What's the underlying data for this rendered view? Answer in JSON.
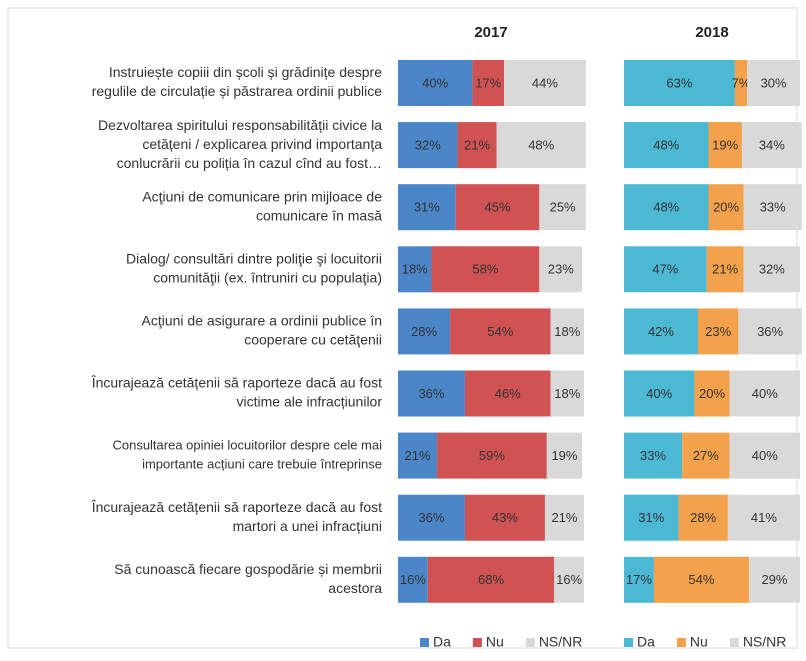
{
  "chart_data": [
    {
      "type": "bar",
      "orientation": "horizontal",
      "stacked": true,
      "title": "2017",
      "categories": [
        [
          "Instruiește copiii din școli și grădinițe despre",
          "regulile de circulație și păstrarea ordinii publice"
        ],
        [
          "Dezvoltarea spiritului responsabilității civice la",
          "cetățeni / explicarea privind importanța",
          "conlucrării cu poliția în cazul cînd au fost…"
        ],
        [
          "Acţiuni de comunicare prin mijloace de",
          "comunicare în masă"
        ],
        [
          "Dialog/ consultări dintre poliţie şi locuitorii",
          "comunităţii (ex. întruniri cu populaţia)"
        ],
        [
          "Acţiuni de asigurare a ordinii publice în",
          "cooperare cu cetăţenii"
        ],
        [
          "Încurajează cetățenii să raporteze dacă au fost",
          "victime ale infracțiunilor"
        ],
        [
          "Consultarea opiniei locuitorilor despre cele mai",
          "importante acțiuni care trebuie întreprinse"
        ],
        [
          "Încurajează cetățenii să raporteze dacă au fost",
          "martori a unei infracțiuni"
        ],
        [
          "Să cunoască fiecare gospodărie și membrii",
          "acestora"
        ]
      ],
      "series": [
        {
          "name": "Da",
          "color": "#4a86c8",
          "values": [
            40,
            32,
            31,
            18,
            28,
            36,
            21,
            36,
            16
          ],
          "value_labels": [
            "40%",
            "32%",
            "31%",
            "18%",
            "28%",
            "36%",
            "21%",
            "36%",
            "16%"
          ]
        },
        {
          "name": "Nu",
          "color": "#d05252",
          "values": [
            17,
            21,
            45,
            58,
            54,
            46,
            59,
            43,
            68
          ],
          "value_labels": [
            "17%",
            "21%",
            "45%",
            "58%",
            "54%",
            "46%",
            "59%",
            "43%",
            "68%"
          ]
        },
        {
          "name": "NS/NR",
          "color": "#d9d9d9",
          "values": [
            44,
            48,
            25,
            23,
            18,
            18,
            19,
            21,
            16
          ],
          "value_labels": [
            "44%",
            "48%",
            "25%",
            "23%",
            "18%",
            "18%",
            "19%",
            "21%",
            "16%"
          ]
        }
      ]
    },
    {
      "type": "bar",
      "orientation": "horizontal",
      "stacked": true,
      "title": "2018",
      "series": [
        {
          "name": "Da",
          "color": "#4bb8d4",
          "values": [
            63,
            48,
            48,
            47,
            42,
            40,
            33,
            31,
            17
          ],
          "value_labels": [
            "63%",
            "48%",
            "48%",
            "47%",
            "42%",
            "40%",
            "33%",
            "31%",
            "17%"
          ]
        },
        {
          "name": "Nu",
          "color": "#f4a14b",
          "values": [
            7,
            19,
            20,
            21,
            23,
            20,
            27,
            28,
            54
          ],
          "value_labels": [
            "7%",
            "19%",
            "20%",
            "21%",
            "23%",
            "20%",
            "27%",
            "28%",
            "54%"
          ]
        },
        {
          "name": "NS/NR",
          "color": "#d9d9d9",
          "values": [
            30,
            34,
            33,
            32,
            36,
            40,
            40,
            41,
            29
          ],
          "value_labels": [
            "30%",
            "34%",
            "33%",
            "32%",
            "36%",
            "40%",
            "40%",
            "41%",
            "29%"
          ]
        }
      ]
    }
  ]
}
